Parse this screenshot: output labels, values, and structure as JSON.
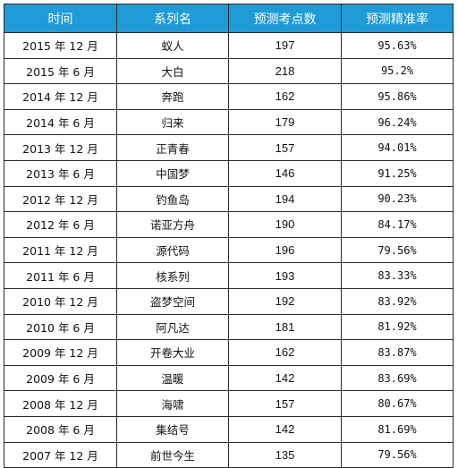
{
  "table": {
    "headers": [
      "时间",
      "系列名",
      "预测考点数",
      "预测精准率"
    ],
    "header_bg": "#1f9bd7",
    "rows": [
      {
        "time": "2015 年 12 月",
        "series": "蚁人",
        "count": "197",
        "accuracy": "95.63%"
      },
      {
        "time": "2015 年 6 月",
        "series": "大白",
        "count": "218",
        "accuracy": "95.2%"
      },
      {
        "time": "2014 年 12 月",
        "series": "奔跑",
        "count": "162",
        "accuracy": "95.86%"
      },
      {
        "time": "2014 年 6 月",
        "series": "归来",
        "count": "179",
        "accuracy": "96.24%"
      },
      {
        "time": "2013 年 12 月",
        "series": "正青春",
        "count": "157",
        "accuracy": "94.01%"
      },
      {
        "time": "2013 年 6 月",
        "series": "中国梦",
        "count": "146",
        "accuracy": "91.25%"
      },
      {
        "time": "2012 年 12 月",
        "series": "钓鱼岛",
        "count": "194",
        "accuracy": "90.23%"
      },
      {
        "time": "2012 年 6 月",
        "series": "诺亚方舟",
        "count": "190",
        "accuracy": "84.17%"
      },
      {
        "time": "2011 年 12 月",
        "series": "源代码",
        "count": "196",
        "accuracy": "79.56%"
      },
      {
        "time": "2011 年 6 月",
        "series": "核系列",
        "count": "193",
        "accuracy": "83.33%"
      },
      {
        "time": "2010 年 12 月",
        "series": "盗梦空间",
        "count": "192",
        "accuracy": "83.92%"
      },
      {
        "time": "2010 年 6 月",
        "series": "阿凡达",
        "count": "181",
        "accuracy": "81.92%"
      },
      {
        "time": "2009 年 12 月",
        "series": "开卷大业",
        "count": "162",
        "accuracy": "83.87%"
      },
      {
        "time": "2009 年 6 月",
        "series": "温暖",
        "count": "142",
        "accuracy": "83.69%"
      },
      {
        "time": "2008 年 12 月",
        "series": "海啸",
        "count": "157",
        "accuracy": "80.67%"
      },
      {
        "time": "2008 年 6 月",
        "series": "集结号",
        "count": "142",
        "accuracy": "81.69%"
      },
      {
        "time": "2007 年 12 月",
        "series": "前世今生",
        "count": "135",
        "accuracy": "79.56%"
      }
    ]
  }
}
